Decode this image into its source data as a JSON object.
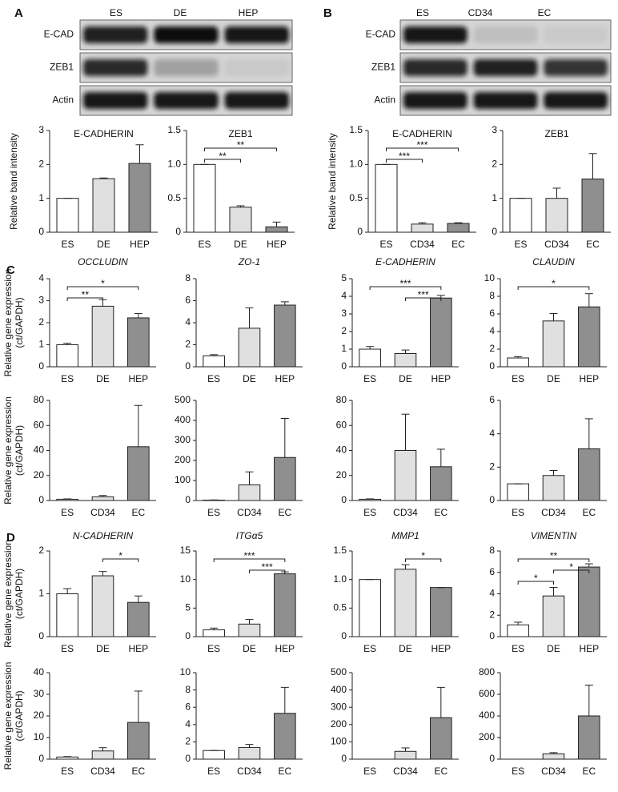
{
  "panels": [
    "A",
    "B",
    "C",
    "D"
  ],
  "blots": [
    {
      "columns": [
        "ES",
        "DE",
        "HEP"
      ],
      "rows": [
        "E-CAD",
        "ZEB1",
        "Actin"
      ]
    },
    {
      "columns": [
        "ES",
        "CD34",
        "EC"
      ],
      "rows": [
        "E-CAD",
        "ZEB1",
        "Actin"
      ]
    }
  ],
  "bar_colors": [
    "#ffffff",
    "#e0e0e0",
    "#8f8f8f"
  ],
  "chart_data": [
    {
      "type": "bar",
      "title": "E-CADHERIN",
      "ylabel": [
        "Relative band intensity"
      ],
      "categories": [
        "ES",
        "DE",
        "HEP"
      ],
      "values": [
        1,
        1.58,
        2.03
      ],
      "errors": [
        0,
        0.02,
        0.55
      ],
      "ylim": [
        0,
        3
      ],
      "yticks": [
        0,
        1,
        2,
        3
      ]
    },
    {
      "type": "bar",
      "title": "ZEB1",
      "categories": [
        "ES",
        "DE",
        "HEP"
      ],
      "values": [
        1,
        0.37,
        0.08
      ],
      "errors": [
        0,
        0.02,
        0.07
      ],
      "ylim": [
        0,
        1.5
      ],
      "yticks": [
        0,
        0.5,
        {
          "value": 1,
          "label": "1.0"
        },
        1.5
      ],
      "significance": [
        {
          "from": "ES",
          "to": "DE",
          "label": "**"
        },
        {
          "from": "ES",
          "to": "HEP",
          "label": "**"
        }
      ]
    },
    {
      "type": "bar",
      "title": "E-CADHERIN",
      "ylabel": [
        "Relative band intensity"
      ],
      "categories": [
        "ES",
        "CD34",
        "EC"
      ],
      "values": [
        1,
        0.12,
        0.13
      ],
      "errors": [
        0,
        0.02,
        0.01
      ],
      "ylim": [
        0,
        1.5
      ],
      "yticks": [
        0,
        0.5,
        {
          "value": 1,
          "label": "1.0"
        },
        1.5
      ],
      "significance": [
        {
          "from": "ES",
          "to": "CD34",
          "label": "***"
        },
        {
          "from": "ES",
          "to": "EC",
          "label": "***"
        }
      ]
    },
    {
      "type": "bar",
      "title": "ZEB1",
      "categories": [
        "ES",
        "CD34",
        "EC"
      ],
      "values": [
        1,
        1.0,
        1.57
      ],
      "errors": [
        0,
        0.3,
        0.75
      ],
      "ylim": [
        0,
        3
      ],
      "yticks": [
        0,
        1,
        2,
        3
      ]
    },
    {
      "type": "bar",
      "title": "OCCLUDIN",
      "ylabel": [
        "Relative gene expression",
        "(ct/GAPDH)"
      ],
      "categories": [
        "ES",
        "DE",
        "HEP"
      ],
      "values": [
        1,
        2.75,
        2.22
      ],
      "errors": [
        0.07,
        0.3,
        0.2
      ],
      "ylim": [
        0,
        4
      ],
      "yticks": [
        0,
        1,
        2,
        3,
        4
      ],
      "significance": [
        {
          "from": "ES",
          "to": "DE",
          "label": "**"
        },
        {
          "from": "ES",
          "to": "HEP",
          "label": "*"
        }
      ]
    },
    {
      "type": "bar",
      "title": "ZO-1",
      "categories": [
        "ES",
        "DE",
        "HEP"
      ],
      "values": [
        1,
        3.5,
        5.6
      ],
      "errors": [
        0.1,
        1.85,
        0.3
      ],
      "ylim": [
        0,
        8
      ],
      "yticks": [
        0,
        2,
        4,
        6,
        8
      ]
    },
    {
      "type": "bar",
      "title": "E-CADHERIN",
      "categories": [
        "ES",
        "DE",
        "HEP"
      ],
      "values": [
        1,
        0.75,
        3.9
      ],
      "errors": [
        0.15,
        0.2,
        0.15
      ],
      "ylim": [
        0,
        5
      ],
      "yticks": [
        0,
        1,
        2,
        3,
        4,
        5
      ],
      "significance": [
        {
          "from": "DE",
          "to": "HEP",
          "label": "***"
        },
        {
          "from": "ES",
          "to": "HEP",
          "label": "***"
        }
      ]
    },
    {
      "type": "bar",
      "title": "CLAUDIN",
      "categories": [
        "ES",
        "DE",
        "HEP"
      ],
      "values": [
        1,
        5.2,
        6.8
      ],
      "errors": [
        0.15,
        0.85,
        1.5
      ],
      "ylim": [
        0,
        10
      ],
      "yticks": [
        0,
        2,
        4,
        6,
        8,
        10
      ],
      "significance": [
        {
          "from": "ES",
          "to": "HEP",
          "label": "*"
        }
      ]
    },
    {
      "type": "bar",
      "ylabel": [
        "Relative gene expression",
        "(ct/GAPDH)"
      ],
      "categories": [
        "ES",
        "CD34",
        "EC"
      ],
      "values": [
        1,
        3,
        43
      ],
      "errors": [
        0.3,
        1,
        33
      ],
      "ylim": [
        0,
        80
      ],
      "yticks": [
        0,
        20,
        40,
        60,
        80
      ]
    },
    {
      "type": "bar",
      "categories": [
        "ES",
        "CD34",
        "EC"
      ],
      "values": [
        2,
        78,
        215
      ],
      "errors": [
        1,
        65,
        195
      ],
      "ylim": [
        0,
        500
      ],
      "yticks": [
        0,
        100,
        200,
        300,
        400,
        500
      ]
    },
    {
      "type": "bar",
      "categories": [
        "ES",
        "CD34",
        "EC"
      ],
      "values": [
        1,
        40,
        27
      ],
      "errors": [
        0.3,
        29,
        14
      ],
      "ylim": [
        0,
        80
      ],
      "yticks": [
        0,
        20,
        40,
        60,
        80
      ]
    },
    {
      "type": "bar",
      "categories": [
        "ES",
        "CD34",
        "EC"
      ],
      "values": [
        1,
        1.5,
        3.1
      ],
      "errors": [
        0,
        0.3,
        1.8
      ],
      "ylim": [
        0,
        6
      ],
      "yticks": [
        0,
        2,
        4,
        6
      ]
    },
    {
      "type": "bar",
      "title": "N-CADHERIN",
      "ylabel": [
        "Relative gene expression",
        "(ct/GAPDH)"
      ],
      "categories": [
        "ES",
        "DE",
        "HEP"
      ],
      "values": [
        1,
        1.42,
        0.8
      ],
      "errors": [
        0.12,
        0.1,
        0.15
      ],
      "ylim": [
        0,
        2
      ],
      "yticks": [
        0,
        1,
        2
      ],
      "significance": [
        {
          "from": "DE",
          "to": "HEP",
          "label": "*"
        }
      ]
    },
    {
      "type": "bar",
      "title": "ITGα5",
      "categories": [
        "ES",
        "DE",
        "HEP"
      ],
      "values": [
        1.2,
        2.2,
        11
      ],
      "errors": [
        0.3,
        0.8,
        0.35
      ],
      "ylim": [
        0,
        15
      ],
      "yticks": [
        0,
        5,
        10,
        15
      ],
      "significance": [
        {
          "from": "DE",
          "to": "HEP",
          "label": "***"
        },
        {
          "from": "ES",
          "to": "HEP",
          "label": "***"
        }
      ]
    },
    {
      "type": "bar",
      "title": "MMP1",
      "categories": [
        "ES",
        "DE",
        "HEP"
      ],
      "values": [
        1,
        1.18,
        0.86
      ],
      "errors": [
        0,
        0.08,
        0
      ],
      "ylim": [
        0,
        1.5
      ],
      "yticks": [
        0,
        0.5,
        {
          "value": 1,
          "label": "1.0"
        },
        1.5
      ],
      "significance": [
        {
          "from": "DE",
          "to": "HEP",
          "label": "*"
        }
      ]
    },
    {
      "type": "bar",
      "title": "VIMENTIN",
      "categories": [
        "ES",
        "DE",
        "HEP"
      ],
      "values": [
        1.1,
        3.8,
        6.5
      ],
      "errors": [
        0.25,
        0.8,
        0.3
      ],
      "ylim": [
        0,
        8
      ],
      "yticks": [
        0,
        2,
        4,
        6,
        8
      ],
      "significance": [
        {
          "from": "ES",
          "to": "DE",
          "label": "*"
        },
        {
          "from": "DE",
          "to": "HEP",
          "label": "*"
        },
        {
          "from": "ES",
          "to": "HEP",
          "label": "**"
        }
      ]
    },
    {
      "type": "bar",
      "ylabel": [
        "Relative gene expression",
        "(ct/GAPDH)"
      ],
      "categories": [
        "ES",
        "CD34",
        "EC"
      ],
      "values": [
        1,
        3.8,
        17
      ],
      "errors": [
        0.2,
        1.5,
        14.5
      ],
      "ylim": [
        0,
        40
      ],
      "yticks": [
        0,
        10,
        20,
        30,
        40
      ]
    },
    {
      "type": "bar",
      "categories": [
        "ES",
        "CD34",
        "EC"
      ],
      "values": [
        1,
        1.35,
        5.3
      ],
      "errors": [
        0,
        0.35,
        3
      ],
      "ylim": [
        0,
        10
      ],
      "yticks": [
        0,
        2,
        4,
        6,
        8,
        10
      ]
    },
    {
      "type": "bar",
      "categories": [
        "ES",
        "CD34",
        "EC"
      ],
      "values": [
        0,
        45,
        240
      ],
      "errors": [
        0,
        20,
        175
      ],
      "ylim": [
        0,
        500
      ],
      "yticks": [
        0,
        100,
        200,
        300,
        400,
        500
      ]
    },
    {
      "type": "bar",
      "categories": [
        "ES",
        "CD34",
        "EC"
      ],
      "values": [
        0,
        50,
        400
      ],
      "errors": [
        0,
        10,
        285
      ],
      "ylim": [
        0,
        800
      ],
      "yticks": [
        0,
        200,
        400,
        600,
        800
      ]
    }
  ]
}
